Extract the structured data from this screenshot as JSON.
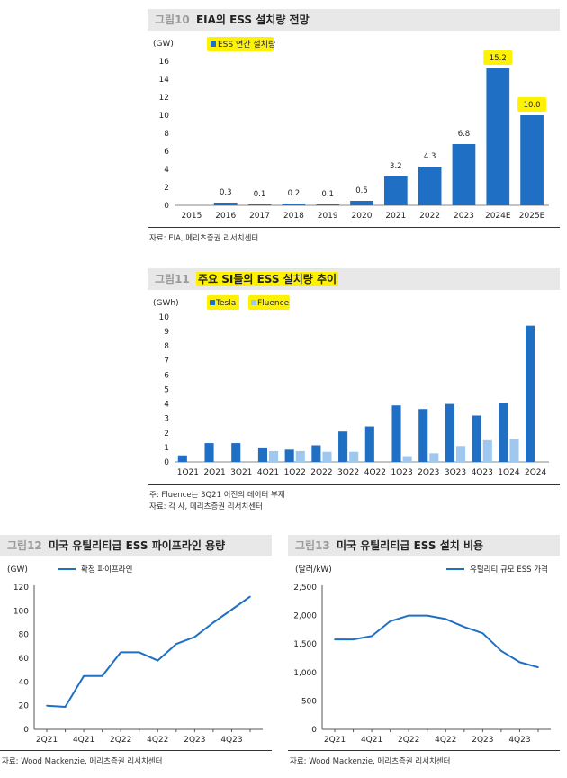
{
  "fig10": {
    "number": "그림10",
    "title": "EIA의 ESS 설치량 전망",
    "source": "자료: EIA, 메리츠증권 리서치센터",
    "chart_data": {
      "type": "bar",
      "unit": "(GW)",
      "categories": [
        "2015",
        "2016",
        "2017",
        "2018",
        "2019",
        "2020",
        "2021",
        "2022",
        "2023",
        "2024E",
        "2025E"
      ],
      "series": [
        {
          "name": "ESS 연간 설치량",
          "values": [
            0,
            0.3,
            0.1,
            0.2,
            0.1,
            0.5,
            3.2,
            4.3,
            6.8,
            15.2,
            10.0
          ],
          "labels": [
            "",
            "0.3",
            "0.1",
            "0.2",
            "0.1",
            "0.5",
            "3.2",
            "4.3",
            "6.8",
            "15.2",
            "10.0"
          ]
        }
      ],
      "ylim": [
        0,
        16
      ],
      "yticks": [
        0,
        2,
        4,
        6,
        8,
        10,
        12,
        14,
        16
      ],
      "highlight_labels": [
        "2024E",
        "2025E"
      ],
      "color": "#1f6fc5",
      "legend": "top-left"
    }
  },
  "fig11": {
    "number": "그림11",
    "title": "주요 SI들의 ESS 설치량 추이",
    "note": "주: Fluence는 3Q21 이전의 데이터 부재",
    "source": "자료: 각 사, 메리츠증권 리서치센터",
    "chart_data": {
      "type": "bar",
      "unit": "(GWh)",
      "categories": [
        "1Q21",
        "2Q21",
        "3Q21",
        "4Q21",
        "1Q22",
        "2Q22",
        "3Q22",
        "4Q22",
        "1Q23",
        "2Q23",
        "3Q23",
        "4Q23",
        "1Q24",
        "2Q24"
      ],
      "series": [
        {
          "name": "Tesla",
          "color": "#1f6fc5",
          "values": [
            0.45,
            1.3,
            1.3,
            1.0,
            0.85,
            1.15,
            2.1,
            2.45,
            3.9,
            3.65,
            4.0,
            3.2,
            4.05,
            9.4
          ]
        },
        {
          "name": "Fluence",
          "color": "#9ec8f0",
          "values": [
            null,
            null,
            null,
            0.75,
            0.75,
            0.7,
            0.7,
            null,
            0.4,
            0.6,
            1.1,
            1.5,
            1.6,
            null
          ]
        }
      ],
      "ylim": [
        0,
        10
      ],
      "yticks": [
        0,
        1,
        2,
        3,
        4,
        5,
        6,
        7,
        8,
        9,
        10
      ],
      "legend": "top-left"
    }
  },
  "fig12": {
    "number": "그림12",
    "title": "미국 유틸리티급 ESS 파이프라인 용량",
    "source": "자료: Wood Mackenzie, 메리츠증권 리서치센터",
    "chart_data": {
      "type": "line",
      "unit": "(GW)",
      "x": [
        0,
        1,
        2,
        3,
        4,
        5,
        6,
        7,
        8,
        9,
        10,
        11
      ],
      "series": [
        {
          "name": "확정 파이프라인",
          "values": [
            20,
            19,
            45,
            45,
            65,
            65,
            58,
            72,
            78,
            90,
            101,
            112
          ]
        }
      ],
      "xtick_labels": [
        {
          "pos": 0,
          "label": "2Q21"
        },
        {
          "pos": 2,
          "label": "4Q21"
        },
        {
          "pos": 4,
          "label": "2Q22"
        },
        {
          "pos": 6,
          "label": "4Q22"
        },
        {
          "pos": 8,
          "label": "2Q23"
        },
        {
          "pos": 10,
          "label": "4Q23"
        }
      ],
      "ylim": [
        0,
        120
      ],
      "yticks": [
        0,
        20,
        40,
        60,
        80,
        100,
        120
      ],
      "ytick_labels": [
        "0",
        "20",
        "40",
        "60",
        "80",
        "100",
        "120"
      ],
      "color": "#1f6fc5",
      "legend": "top-left"
    }
  },
  "fig13": {
    "number": "그림13",
    "title": "미국 유틸리티급 ESS 설치 비용",
    "source": "자료: Wood Mackenzie, 메리츠증권 리서치센터",
    "chart_data": {
      "type": "line",
      "unit": "(달러/kW)",
      "x": [
        0,
        1,
        2,
        3,
        4,
        5,
        6,
        7,
        8,
        9,
        10,
        11
      ],
      "series": [
        {
          "name": "유틸리티 규모 ESS 가격",
          "values": [
            1580,
            1580,
            1640,
            1900,
            2000,
            2000,
            1940,
            1800,
            1690,
            1380,
            1180,
            1090
          ]
        }
      ],
      "xtick_labels": [
        {
          "pos": 0,
          "label": "2Q21"
        },
        {
          "pos": 2,
          "label": "4Q21"
        },
        {
          "pos": 4,
          "label": "2Q22"
        },
        {
          "pos": 6,
          "label": "4Q22"
        },
        {
          "pos": 8,
          "label": "2Q23"
        },
        {
          "pos": 10,
          "label": "4Q23"
        }
      ],
      "ylim": [
        0,
        2500
      ],
      "yticks": [
        0,
        500,
        1000,
        1500,
        2000,
        2500
      ],
      "ytick_labels": [
        "0",
        "500",
        "1,000",
        "1,500",
        "2,000",
        "2,500"
      ],
      "color": "#1f6fc5",
      "legend": "top-right"
    }
  }
}
